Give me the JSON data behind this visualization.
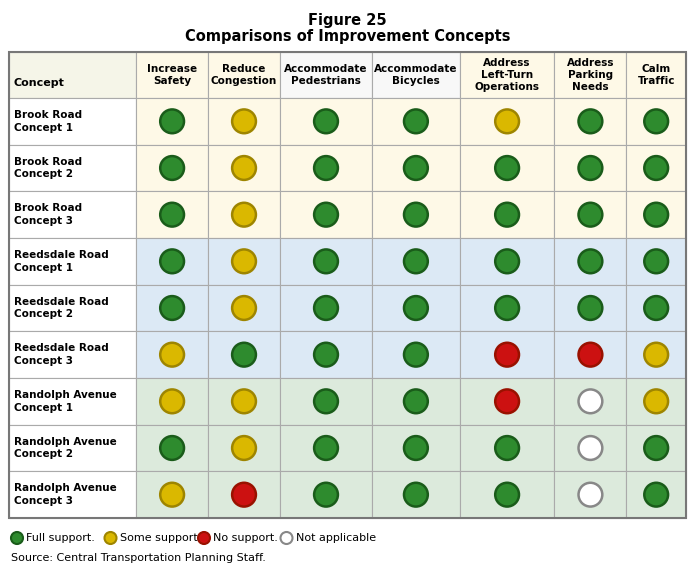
{
  "title_line1": "Figure 25",
  "title_line2": "Comparisons of Improvement Concepts",
  "col_headers": [
    "Concept",
    "Increase\nSafety",
    "Reduce\nCongestion",
    "Accommodate\nPedestrians",
    "Accommodate\nBicycles",
    "Address\nLeft-Turn\nOperations",
    "Address\nParking\nNeeds",
    "Calm\nTraffic"
  ],
  "row_labels": [
    "Brook Road\nConcept 1",
    "Brook Road\nConcept 2",
    "Brook Road\nConcept 3",
    "Reedsdale Road\nConcept 1",
    "Reedsdale Road\nConcept 2",
    "Reedsdale Road\nConcept 3",
    "Randolph Avenue\nConcept 1",
    "Randolph Avenue\nConcept 2",
    "Randolph Avenue\nConcept 3"
  ],
  "data": [
    [
      "G",
      "Y",
      "G",
      "G",
      "Y",
      "G",
      "G"
    ],
    [
      "G",
      "Y",
      "G",
      "G",
      "G",
      "G",
      "G"
    ],
    [
      "G",
      "Y",
      "G",
      "G",
      "G",
      "G",
      "G"
    ],
    [
      "G",
      "Y",
      "G",
      "G",
      "G",
      "G",
      "G"
    ],
    [
      "G",
      "Y",
      "G",
      "G",
      "G",
      "G",
      "G"
    ],
    [
      "Y",
      "G",
      "G",
      "G",
      "R",
      "R",
      "Y"
    ],
    [
      "Y",
      "Y",
      "G",
      "G",
      "R",
      "N",
      "Y"
    ],
    [
      "G",
      "Y",
      "G",
      "G",
      "G",
      "N",
      "G"
    ],
    [
      "Y",
      "R",
      "G",
      "G",
      "G",
      "N",
      "G"
    ]
  ],
  "row_bg_colors": [
    "#fef9e7",
    "#fef9e7",
    "#fef9e7",
    "#dce9f5",
    "#dce9f5",
    "#dce9f5",
    "#dceadc",
    "#dceadc",
    "#dceadc"
  ],
  "header_label_bg": "#f5f5e8",
  "header_col_bg": "#fef9e7",
  "header_col_bg_white": "#f8f8f8",
  "label_col_bg": "#ffffff",
  "circle_colors": {
    "G": "#2e8b2e",
    "Y": "#dab800",
    "R": "#cc1111",
    "N": "#ffffff"
  },
  "circle_edge_colors": {
    "G": "#1a5c1a",
    "Y": "#9e8500",
    "R": "#991100",
    "N": "#888888"
  },
  "legend_symbols": [
    "G",
    "Y",
    "R",
    "N"
  ],
  "legend_labels": [
    "Full support.",
    "Some support.",
    "No support.",
    "Not applicable"
  ],
  "source_text": "Source: Central Transportation Planning Staff.",
  "border_color": "#aaaaaa",
  "fig_width": 6.95,
  "fig_height": 5.72,
  "dpi": 100
}
